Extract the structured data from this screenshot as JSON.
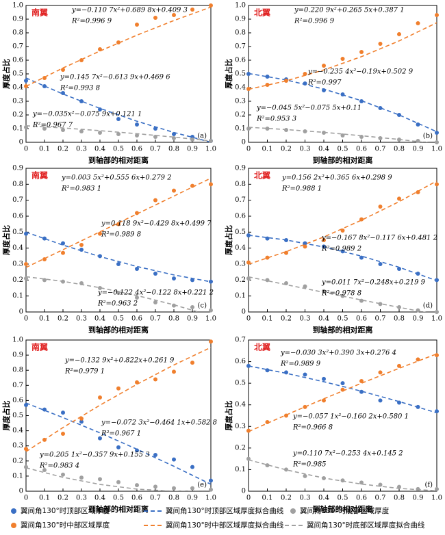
{
  "chart_data": [
    {
      "type": "scatter",
      "label": "南翼",
      "panel": "(a)",
      "xlabel": "到轴部的相对距离",
      "ylabel": "厚度占比",
      "xlim": [
        0,
        1
      ],
      "ylim": [
        0,
        1
      ],
      "xticks": [
        0,
        0.1,
        0.2,
        0.3,
        0.4,
        0.5,
        0.6,
        0.7,
        0.8,
        0.9,
        {
          "value": 1,
          "label": "1.0"
        }
      ],
      "yticks": [
        0,
        0.1,
        0.2,
        0.3,
        0.4,
        0.5,
        0.6,
        0.7,
        0.8,
        0.9,
        {
          "value": 1,
          "label": "1.0"
        }
      ],
      "x": [
        0,
        0.1,
        0.2,
        0.3,
        0.4,
        0.5,
        0.6,
        0.7,
        0.8,
        0.9,
        1
      ],
      "series": [
        {
          "name": "翼间角130°时顶部区域厚度",
          "color": "#3a6fc4",
          "values": [
            0.45,
            0.41,
            0.36,
            0.3,
            0.24,
            0.17,
            0.13,
            0.1,
            0.06,
            0.04,
            0.01
          ]
        },
        {
          "name": "翼间角130°时中部区域厚度",
          "color": "#f07f2d",
          "values": [
            0.41,
            0.47,
            0.53,
            0.6,
            0.68,
            0.73,
            0.86,
            0.91,
            0.93,
            0.97,
            1.0
          ]
        },
        {
          "name": "翼间角130°时底部区域厚度",
          "color": "#a0a0a0",
          "values": [
            0.11,
            0.1,
            0.09,
            0.08,
            0.07,
            0.06,
            0.05,
            0.04,
            0.03,
            0.02,
            0.01
          ]
        }
      ],
      "fits": [
        {
          "name": "翼间角130°时顶部区域厚度拟合曲线",
          "color": "#3a6fc4",
          "x": [
            0,
            0.2,
            0.4,
            0.6,
            0.8,
            1
          ],
          "values": [
            0.47,
            0.353,
            0.248,
            0.154,
            0.072,
            0.001
          ]
        },
        {
          "name": "翼间角130°时中部区域厚度拟合曲线",
          "color": "#f07f2d",
          "x": [
            0,
            0.2,
            0.4,
            0.6,
            0.8,
            1
          ],
          "values": [
            0.409,
            0.543,
            0.667,
            0.783,
            0.89,
            0.988
          ]
        },
        {
          "name": "翼间角130°时底部区域厚度拟合曲线",
          "color": "#a0a0a0",
          "x": [
            0,
            0.2,
            0.4,
            0.6,
            0.8,
            1
          ],
          "values": [
            0.121,
            0.105,
            0.085,
            0.063,
            0.038,
            0.01
          ]
        }
      ],
      "equations": [
        [
          "y=0.145 7x²−0.613 9x+0.469 6",
          "R²=0.993 8"
        ],
        [
          "y=−0.110 7x²+0.689 8x+0.409 3",
          "R²=0.996 9"
        ],
        [
          "y=−0.035x²−0.075 9x+0.121 1",
          "R²=0.967 7"
        ]
      ]
    },
    {
      "type": "scatter",
      "label": "北翼",
      "panel": "(b)",
      "xlabel": "到轴部的相对距离",
      "ylabel": "厚度占比",
      "xlim": [
        0,
        1
      ],
      "ylim": [
        0,
        1
      ],
      "xticks": [
        0,
        0.1,
        0.2,
        0.3,
        0.4,
        0.5,
        0.6,
        0.7,
        0.8,
        0.9,
        {
          "value": 1,
          "label": "1.0"
        }
      ],
      "yticks": [
        0,
        0.1,
        0.2,
        0.3,
        0.4,
        0.5,
        0.6,
        0.7,
        0.8,
        0.9,
        {
          "value": 1,
          "label": "1.0"
        }
      ],
      "x": [
        0,
        0.1,
        0.2,
        0.3,
        0.4,
        0.5,
        0.6,
        0.7,
        0.8,
        0.9,
        1
      ],
      "series": [
        {
          "color": "#3a6fc4",
          "values": [
            0.5,
            0.48,
            0.46,
            0.43,
            0.38,
            0.35,
            0.3,
            0.25,
            0.2,
            0.13,
            0.07
          ]
        },
        {
          "color": "#f07f2d",
          "values": [
            0.39,
            0.42,
            0.45,
            0.5,
            0.56,
            0.61,
            0.66,
            0.72,
            0.79,
            0.87,
            0.93
          ]
        },
        {
          "color": "#a0a0a0",
          "values": [
            0.1,
            0.1,
            0.09,
            0.08,
            0.07,
            0.05,
            0.04,
            0.03,
            0.02,
            0.01,
            0.0
          ]
        }
      ],
      "fits": [
        {
          "color": "#3a6fc4",
          "x": [
            0,
            0.2,
            0.4,
            0.6,
            0.8,
            1
          ],
          "values": [
            0.503,
            0.456,
            0.389,
            0.304,
            0.2,
            0.077
          ]
        },
        {
          "color": "#f07f2d",
          "x": [
            0,
            0.2,
            0.4,
            0.6,
            0.8,
            1
          ],
          "values": [
            0.387,
            0.449,
            0.529,
            0.626,
            0.741,
            0.874
          ]
        },
        {
          "color": "#a0a0a0",
          "x": [
            0,
            0.2,
            0.4,
            0.6,
            0.8,
            1
          ],
          "values": [
            0.11,
            0.093,
            0.073,
            0.048,
            0.021,
            -0.011
          ]
        }
      ],
      "equations": [
        [
          "y=−0.235 4x²−0.19x+0.502 9",
          "R²=0.997"
        ],
        [
          "y=0.220 9x²+0.265 5x+0.387 1",
          "R²=0.996 9"
        ],
        [
          "y=−0.045 5x²−0.075 5x+0.11",
          "R²=0.953 3"
        ]
      ]
    },
    {
      "type": "scatter",
      "label": "南翼",
      "panel": "(c)",
      "xlabel": "到轴部的相对距离",
      "ylabel": "厚度占比",
      "xlim": [
        0,
        1
      ],
      "ylim": [
        0,
        0.9
      ],
      "xticks": [
        0,
        0.1,
        0.2,
        0.3,
        0.4,
        0.5,
        0.6,
        0.7,
        0.8,
        0.9,
        {
          "value": 1,
          "label": "1.0"
        }
      ],
      "yticks": [
        0,
        0.1,
        0.2,
        0.3,
        0.4,
        0.5,
        0.6,
        0.7,
        0.8,
        0.9
      ],
      "x": [
        0,
        0.1,
        0.2,
        0.3,
        0.4,
        0.5,
        0.6,
        0.7,
        0.8,
        0.9,
        1
      ],
      "series": [
        {
          "color": "#3a6fc4",
          "values": [
            0.49,
            0.46,
            0.43,
            0.39,
            0.35,
            0.3,
            0.27,
            0.24,
            0.21,
            0.2,
            0.19
          ]
        },
        {
          "color": "#f07f2d",
          "values": [
            0.3,
            0.33,
            0.37,
            0.42,
            0.49,
            0.55,
            0.62,
            0.7,
            0.76,
            0.79,
            0.8
          ]
        },
        {
          "color": "#a0a0a0",
          "values": [
            0.21,
            0.2,
            0.19,
            0.18,
            0.15,
            0.12,
            0.09,
            0.06,
            0.04,
            0.03,
            0.01
          ]
        }
      ],
      "fits": [
        {
          "color": "#3a6fc4",
          "x": [
            0,
            0.2,
            0.4,
            0.6,
            0.8,
            1
          ],
          "values": [
            0.5,
            0.419,
            0.347,
            0.285,
            0.232,
            0.189
          ]
        },
        {
          "color": "#f07f2d",
          "x": [
            0,
            0.2,
            0.4,
            0.6,
            0.8,
            1
          ],
          "values": [
            0.279,
            0.39,
            0.502,
            0.614,
            0.726,
            0.838
          ]
        },
        {
          "color": "#a0a0a0",
          "x": [
            0,
            0.2,
            0.4,
            0.6,
            0.8,
            1
          ],
          "values": [
            0.221,
            0.192,
            0.152,
            0.103,
            0.045,
            -0.024
          ]
        }
      ],
      "equations": [
        [
          "y=0.118 9x²−0.429 8x+0.499 7",
          "R²=0.989 8"
        ],
        [
          "y=0.003 5x²+0.555 6x+0.279 2",
          "R²=0.983 1"
        ],
        [
          "y=−0.122 4x²−0.122 8x+0.221 2",
          "R²=0.963 2"
        ]
      ]
    },
    {
      "type": "scatter",
      "label": "北翼",
      "panel": "(d)",
      "xlabel": "到轴部的相对距离",
      "ylabel": "厚度占比",
      "xlim": [
        0,
        1
      ],
      "ylim": [
        0,
        0.9
      ],
      "xticks": [
        0,
        0.1,
        0.2,
        0.3,
        0.4,
        0.5,
        0.6,
        0.7,
        0.8,
        0.9,
        {
          "value": 1,
          "label": "1.0"
        }
      ],
      "yticks": [
        0,
        0.1,
        0.2,
        0.3,
        0.4,
        0.5,
        0.6,
        0.7,
        0.8,
        0.9
      ],
      "x": [
        0,
        0.1,
        0.2,
        0.3,
        0.4,
        0.5,
        0.6,
        0.7,
        0.8,
        0.9,
        1
      ],
      "series": [
        {
          "color": "#3a6fc4",
          "values": [
            0.48,
            0.46,
            0.45,
            0.43,
            0.41,
            0.38,
            0.34,
            0.3,
            0.27,
            0.24,
            0.2
          ]
        },
        {
          "color": "#f07f2d",
          "values": [
            0.31,
            0.34,
            0.37,
            0.41,
            0.45,
            0.51,
            0.58,
            0.66,
            0.71,
            0.75,
            0.8
          ]
        },
        {
          "color": "#a0a0a0",
          "values": [
            0.21,
            0.2,
            0.18,
            0.16,
            0.13,
            0.1,
            0.07,
            0.05,
            0.03,
            0.01,
            0.0
          ]
        }
      ],
      "fits": [
        {
          "color": "#3a6fc4",
          "x": [
            0,
            0.2,
            0.4,
            0.6,
            0.8,
            1
          ],
          "values": [
            0.481,
            0.451,
            0.407,
            0.35,
            0.28,
            0.196
          ]
        },
        {
          "color": "#f07f2d",
          "x": [
            0,
            0.2,
            0.4,
            0.6,
            0.8,
            1
          ],
          "values": [
            0.299,
            0.378,
            0.47,
            0.575,
            0.691,
            0.821
          ]
        },
        {
          "color": "#a0a0a0",
          "x": [
            0,
            0.2,
            0.4,
            0.6,
            0.8,
            1
          ],
          "values": [
            0.22,
            0.171,
            0.123,
            0.075,
            0.029,
            -0.016
          ]
        }
      ],
      "equations": [
        [
          "y=−0.167 8x²−0.117 6x+0.481 2",
          "R²=0.989 2"
        ],
        [
          "y=0.156 2x²+0.365 6x+0.298 9",
          "R²=0.988 1"
        ],
        [
          "y=0.011 7x²−0.248x+0.219 9",
          "R²=0.978 8"
        ]
      ]
    },
    {
      "type": "scatter",
      "label": "南翼",
      "panel": "(e)",
      "xlabel": "到轴部的相对距离",
      "ylabel": "厚度占比",
      "xlim": [
        0,
        1
      ],
      "ylim": [
        0,
        1
      ],
      "xticks": [
        0,
        0.1,
        0.2,
        0.3,
        0.4,
        0.5,
        0.6,
        0.7,
        0.8,
        0.9,
        {
          "value": 1,
          "label": "1.0"
        }
      ],
      "yticks": [
        0,
        0.1,
        0.2,
        0.3,
        0.4,
        0.5,
        0.6,
        0.7,
        0.8,
        0.9,
        {
          "value": 1,
          "label": "1.0"
        }
      ],
      "x": [
        0,
        0.1,
        0.2,
        0.3,
        0.4,
        0.5,
        0.6,
        0.7,
        0.8,
        0.9,
        1
      ],
      "series": [
        {
          "color": "#3a6fc4",
          "values": [
            0.57,
            0.54,
            0.52,
            0.46,
            0.35,
            0.29,
            0.27,
            0.24,
            0.21,
            0.16,
            0.07
          ]
        },
        {
          "color": "#f07f2d",
          "values": [
            0.28,
            0.34,
            0.38,
            0.48,
            0.62,
            0.68,
            0.72,
            0.74,
            0.79,
            0.85,
            0.99
          ]
        },
        {
          "color": "#a0a0a0",
          "values": [
            0.16,
            0.14,
            0.11,
            0.09,
            0.08,
            0.06,
            0.04,
            0.03,
            0.02,
            0.02,
            0.01
          ]
        }
      ],
      "fits": [
        {
          "color": "#3a6fc4",
          "x": [
            0,
            0.2,
            0.4,
            0.6,
            0.8,
            1
          ],
          "values": [
            0.583,
            0.487,
            0.386,
            0.278,
            0.165,
            0.046
          ]
        },
        {
          "color": "#f07f2d",
          "x": [
            0,
            0.2,
            0.4,
            0.6,
            0.8,
            1
          ],
          "values": [
            0.262,
            0.421,
            0.569,
            0.707,
            0.835,
            0.951
          ]
        },
        {
          "color": "#a0a0a0",
          "x": [
            0,
            0.2,
            0.4,
            0.6,
            0.8,
            1
          ],
          "values": [
            0.155,
            0.092,
            0.045,
            0.014,
            0.0,
            0.003
          ]
        }
      ],
      "equations": [
        [
          "y=−0.072 3x²−0.464 1x+0.582 8",
          "R²=0.967 1"
        ],
        [
          "y=−0.132 9x²+0.822x+0.261 9",
          "R²=0.979 1"
        ],
        [
          "y=0.205 1x²−0.357 9x+0.155 3",
          "R²=0.983 4"
        ]
      ]
    },
    {
      "type": "scatter",
      "label": "北翼",
      "panel": "(f)",
      "xlabel": "到轴部的相对距离",
      "ylabel": "厚度占比",
      "xlim": [
        0,
        1
      ],
      "ylim": [
        0,
        0.7
      ],
      "xticks": [
        0,
        0.1,
        0.2,
        0.3,
        0.4,
        0.5,
        0.6,
        0.7,
        0.8,
        0.9,
        {
          "value": 1,
          "label": "1.0"
        }
      ],
      "yticks": [
        0,
        0.1,
        0.2,
        0.3,
        0.4,
        0.5,
        0.6,
        0.7
      ],
      "x": [
        0,
        0.1,
        0.2,
        0.3,
        0.4,
        0.5,
        0.6,
        0.7,
        0.8,
        0.9,
        1
      ],
      "series": [
        {
          "color": "#3a6fc4",
          "values": [
            0.58,
            0.56,
            0.55,
            0.54,
            0.52,
            0.5,
            0.46,
            0.42,
            0.41,
            0.39,
            0.37
          ]
        },
        {
          "color": "#f07f2d",
          "values": [
            0.28,
            0.32,
            0.35,
            0.39,
            0.42,
            0.47,
            0.51,
            0.55,
            0.58,
            0.61,
            0.63
          ]
        },
        {
          "color": "#a0a0a0",
          "values": [
            0.15,
            0.12,
            0.1,
            0.07,
            0.06,
            0.05,
            0.04,
            0.03,
            0.02,
            0.01,
            0.01
          ]
        }
      ],
      "fits": [
        {
          "color": "#3a6fc4",
          "x": [
            0,
            0.2,
            0.4,
            0.6,
            0.8,
            1
          ],
          "values": [
            0.58,
            0.546,
            0.507,
            0.463,
            0.415,
            0.363
          ]
        },
        {
          "color": "#f07f2d",
          "x": [
            0,
            0.2,
            0.4,
            0.6,
            0.8,
            1
          ],
          "values": [
            0.276,
            0.353,
            0.428,
            0.5,
            0.569,
            0.636
          ]
        },
        {
          "color": "#a0a0a0",
          "x": [
            0,
            0.2,
            0.4,
            0.6,
            0.8,
            1
          ],
          "values": [
            0.145,
            0.099,
            0.061,
            0.033,
            0.013,
            0.002
          ]
        }
      ],
      "equations": [
        [
          "y=−0.057 1x²−0.160 2x+0.580 1",
          "R²=0.966 8"
        ],
        [
          "y=−0.030 3x²+0.390 3x+0.276 4",
          "R²=0.989 9"
        ],
        [
          "y=0.110 7x²−0.253 4x+0.145 2",
          "R²=0.985"
        ]
      ]
    }
  ]
}
